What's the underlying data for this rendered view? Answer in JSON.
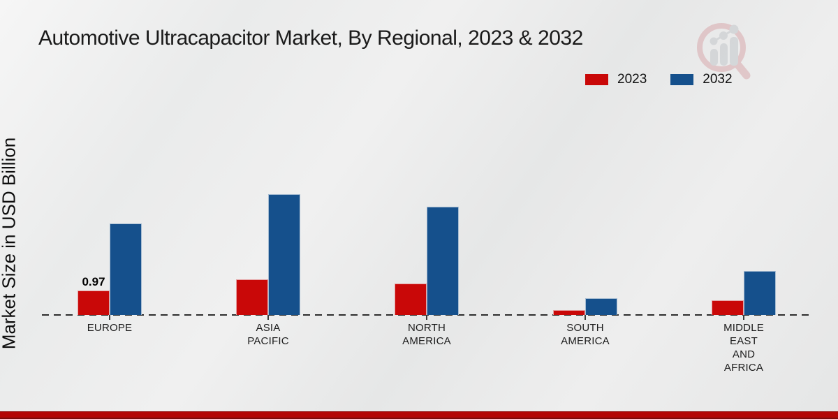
{
  "title": "Automotive Ultracapacitor Market, By Regional, 2023 & 2032",
  "legend": [
    {
      "label": "2023",
      "color": "#c90808"
    },
    {
      "label": "2032",
      "color": "#15508c"
    }
  ],
  "logo": {
    "name": "market-research-watermark",
    "ring_color": "#d8a9ad",
    "bar_color": "#c3c7cb"
  },
  "footer": {
    "accent_color": "#b30606"
  },
  "chart_data": {
    "type": "bar",
    "title": "Automotive Ultracapacitor Market, By Regional, 2023 & 2032",
    "ylabel": "Market Size in USD Billion",
    "xlabel": "",
    "ylim": [
      0,
      5.5
    ],
    "grid": false,
    "legend_position": "top-right",
    "baseline_style": "dashed",
    "categories": [
      "EUROPE",
      "ASIA PACIFIC",
      "NORTH AMERICA",
      "SOUTH AMERICA",
      "MIDDLE EAST AND AFRICA"
    ],
    "category_label_lines": [
      [
        "EUROPE"
      ],
      [
        "ASIA",
        "PACIFIC"
      ],
      [
        "NORTH",
        "AMERICA"
      ],
      [
        "SOUTH",
        "AMERICA"
      ],
      [
        "MIDDLE",
        "EAST",
        "AND",
        "AFRICA"
      ]
    ],
    "series": [
      {
        "name": "2023",
        "color": "#c90808",
        "values": [
          0.97,
          1.41,
          1.23,
          0.18,
          0.58
        ]
      },
      {
        "name": "2032",
        "color": "#15508c",
        "values": [
          3.61,
          4.76,
          4.27,
          0.66,
          1.72
        ]
      }
    ],
    "data_labels": [
      {
        "series_index": 0,
        "category_index": 0,
        "text": "0.97"
      }
    ]
  }
}
